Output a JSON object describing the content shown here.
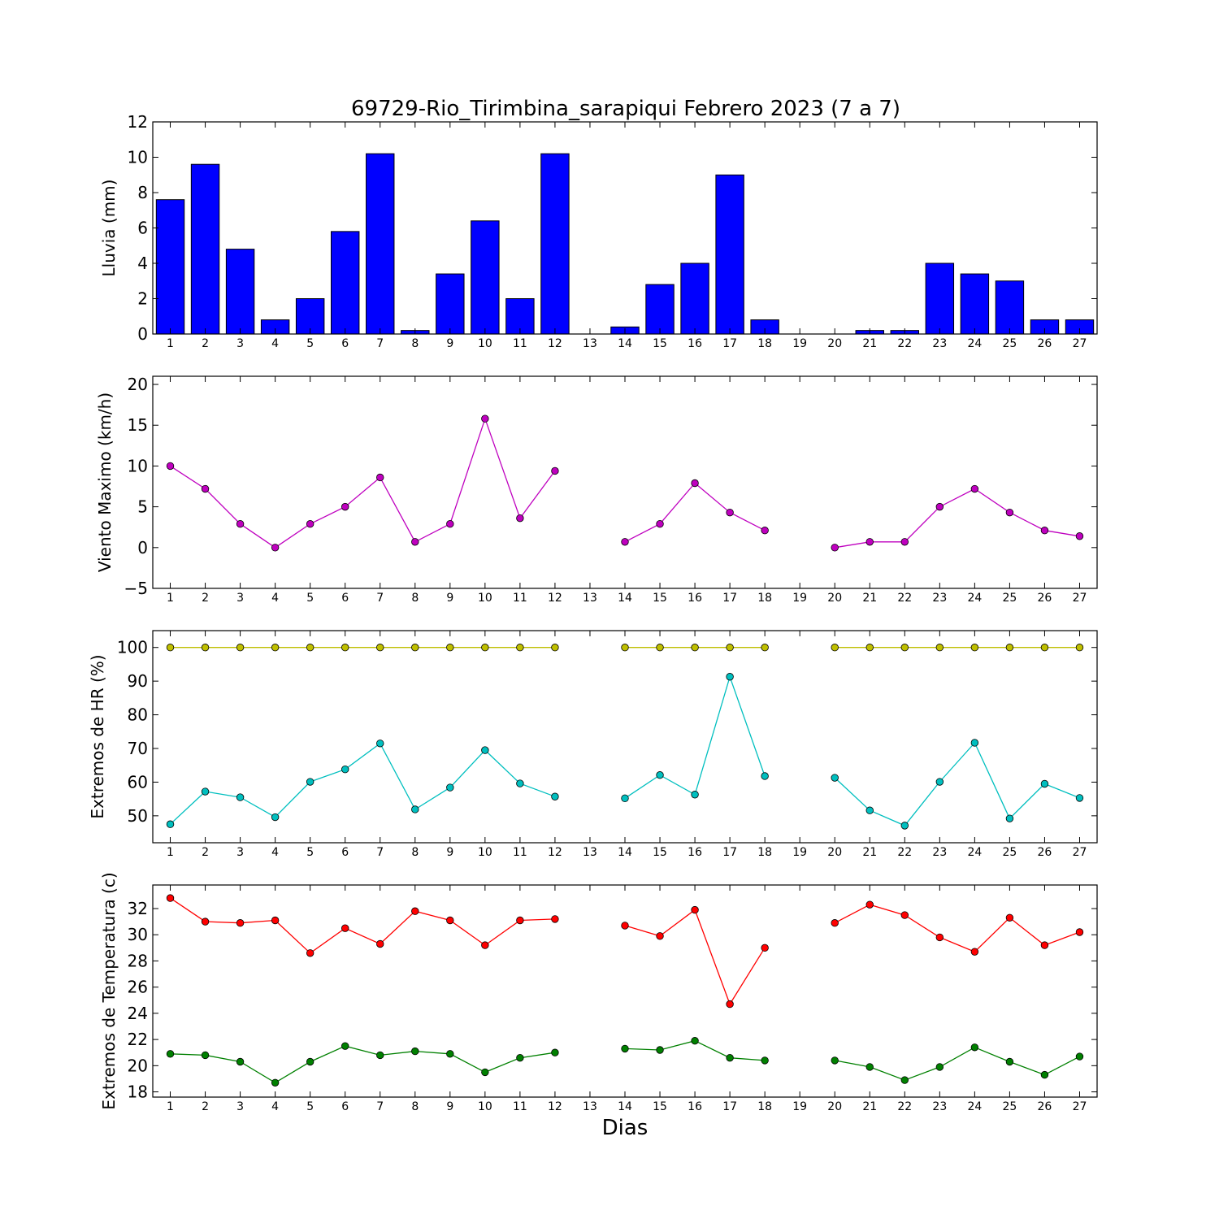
{
  "chart_data": [
    {
      "type": "bar",
      "title": "69729-Rio_Tirimbina_sarapiqui Febrero 2023  (7 a 7)",
      "ylabel": "Lluvia (mm)",
      "xlabel": "",
      "ylim": [
        0,
        12
      ],
      "yticks": [
        0,
        2,
        4,
        6,
        8,
        10,
        12
      ],
      "xticks": [
        1,
        2,
        3,
        4,
        5,
        6,
        7,
        8,
        9,
        10,
        11,
        12,
        13,
        14,
        15,
        16,
        17,
        18,
        19,
        20,
        21,
        22,
        23,
        24,
        25,
        26,
        27
      ],
      "series": [
        {
          "color": "#0000ff",
          "x": [
            1,
            2,
            3,
            4,
            5,
            6,
            7,
            8,
            9,
            10,
            11,
            12,
            13,
            14,
            15,
            16,
            17,
            18,
            19,
            20,
            21,
            22,
            23,
            24,
            25,
            26,
            27
          ],
          "values": [
            7.6,
            9.6,
            4.8,
            0.8,
            2.0,
            5.8,
            10.2,
            0.2,
            3.4,
            6.4,
            2.0,
            10.2,
            0,
            0.4,
            2.8,
            4.0,
            9.0,
            0.8,
            0,
            0,
            0.2,
            0.2,
            4.0,
            3.4,
            3.0,
            0.8,
            0.8
          ]
        }
      ],
      "grid": false
    },
    {
      "type": "line",
      "ylabel": "Viento Maximo (km/h)",
      "xlabel": "",
      "ylim": [
        -5,
        21
      ],
      "yticks": [
        -5,
        0,
        5,
        10,
        15,
        20
      ],
      "xticks": [
        1,
        2,
        3,
        4,
        5,
        6,
        7,
        8,
        9,
        10,
        11,
        12,
        13,
        14,
        15,
        16,
        17,
        18,
        19,
        20,
        21,
        22,
        23,
        24,
        25,
        26,
        27
      ],
      "series": [
        {
          "color": "#bf00bf",
          "x": [
            1,
            2,
            3,
            4,
            5,
            6,
            7,
            8,
            9,
            10,
            11,
            12,
            13,
            14,
            15,
            16,
            17,
            18,
            19,
            20,
            21,
            22,
            23,
            24,
            25,
            26,
            27
          ],
          "values": [
            10.0,
            7.2,
            2.9,
            0.0,
            2.9,
            5.0,
            8.6,
            0.7,
            2.9,
            15.8,
            3.6,
            9.4,
            null,
            0.7,
            2.9,
            7.9,
            4.3,
            2.1,
            null,
            0.0,
            0.7,
            0.7,
            5.0,
            7.2,
            4.3,
            2.1,
            1.4
          ]
        }
      ],
      "grid": false
    },
    {
      "type": "line",
      "ylabel": "Extremos de HR (%)",
      "xlabel": "",
      "ylim": [
        42,
        105
      ],
      "yticks": [
        50,
        60,
        70,
        80,
        90,
        100
      ],
      "xticks": [
        1,
        2,
        3,
        4,
        5,
        6,
        7,
        8,
        9,
        10,
        11,
        12,
        13,
        14,
        15,
        16,
        17,
        18,
        19,
        20,
        21,
        22,
        23,
        24,
        25,
        26,
        27
      ],
      "series": [
        {
          "color": "#bfbf00",
          "x": [
            1,
            2,
            3,
            4,
            5,
            6,
            7,
            8,
            9,
            10,
            11,
            12,
            13,
            14,
            15,
            16,
            17,
            18,
            19,
            20,
            21,
            22,
            23,
            24,
            25,
            26,
            27
          ],
          "values": [
            100,
            100,
            100,
            100,
            100,
            100,
            100,
            100,
            100,
            100,
            100,
            100,
            null,
            100,
            100,
            100,
            100,
            100,
            null,
            100,
            100,
            100,
            100,
            100,
            100,
            100,
            100
          ]
        },
        {
          "color": "#00bfbf",
          "x": [
            1,
            2,
            3,
            4,
            5,
            6,
            7,
            8,
            9,
            10,
            11,
            12,
            13,
            14,
            15,
            16,
            17,
            18,
            19,
            20,
            21,
            22,
            23,
            24,
            25,
            26,
            27
          ],
          "values": [
            47.5,
            57.2,
            55.5,
            49.6,
            60.1,
            63.8,
            71.5,
            51.9,
            58.4,
            69.5,
            59.6,
            55.7,
            null,
            55.2,
            62.1,
            56.3,
            91.3,
            61.8,
            null,
            61.3,
            51.6,
            47.1,
            60.1,
            71.7,
            49.2,
            59.5,
            55.3
          ]
        }
      ],
      "grid": false
    },
    {
      "type": "line",
      "ylabel": "Extremos de Temperatura (c)",
      "xlabel": "Dias",
      "ylim": [
        17.6,
        33.8
      ],
      "yticks": [
        18,
        20,
        22,
        24,
        26,
        28,
        30,
        32
      ],
      "xticks": [
        1,
        2,
        3,
        4,
        5,
        6,
        7,
        8,
        9,
        10,
        11,
        12,
        13,
        14,
        15,
        16,
        17,
        18,
        19,
        20,
        21,
        22,
        23,
        24,
        25,
        26,
        27
      ],
      "series": [
        {
          "color": "#ff0000",
          "x": [
            1,
            2,
            3,
            4,
            5,
            6,
            7,
            8,
            9,
            10,
            11,
            12,
            13,
            14,
            15,
            16,
            17,
            18,
            19,
            20,
            21,
            22,
            23,
            24,
            25,
            26,
            27
          ],
          "values": [
            32.8,
            31.0,
            30.9,
            31.1,
            28.6,
            30.5,
            29.3,
            31.8,
            31.1,
            29.2,
            31.1,
            31.2,
            null,
            30.7,
            29.9,
            31.9,
            24.7,
            29.0,
            null,
            30.9,
            32.3,
            31.5,
            29.8,
            28.7,
            31.3,
            29.2,
            30.2
          ]
        },
        {
          "color": "#008000",
          "x": [
            1,
            2,
            3,
            4,
            5,
            6,
            7,
            8,
            9,
            10,
            11,
            12,
            13,
            14,
            15,
            16,
            17,
            18,
            19,
            20,
            21,
            22,
            23,
            24,
            25,
            26,
            27
          ],
          "values": [
            20.9,
            20.8,
            20.3,
            18.7,
            20.3,
            21.5,
            20.8,
            21.1,
            20.9,
            19.5,
            20.6,
            21.0,
            null,
            21.3,
            21.2,
            21.9,
            20.6,
            20.4,
            null,
            20.4,
            19.9,
            18.9,
            19.9,
            21.4,
            20.3,
            19.3,
            20.7
          ]
        }
      ],
      "grid": false
    }
  ]
}
